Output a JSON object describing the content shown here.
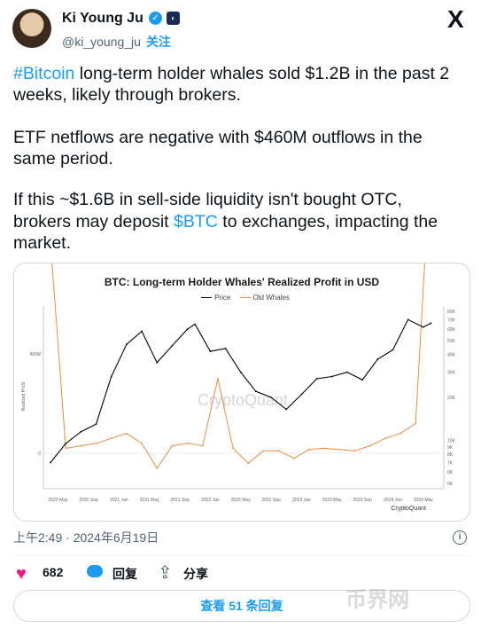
{
  "author": {
    "name": "Ki Young Ju",
    "handle": "@ki_young_ju",
    "follow": "关注",
    "verified_icon": "✓"
  },
  "tweet": {
    "line1_tag": "#Bitcoin",
    "line1_rest": " long-term holder whales sold $1.2B in the past 2",
    "line2": "weeks, likely through brokers.",
    "line3": "ETF netflows are negative with $460M outflows in the",
    "line4": "same period.",
    "line5": "If this ~$1.6B in sell-side liquidity isn't bought OTC,",
    "line6_pre": "brokers may deposit ",
    "line6_tag": "$BTC",
    "line6_post": " to exchanges, impacting the",
    "line7": "market."
  },
  "chart_data": {
    "type": "line",
    "title": "BTC: Long-term Holder Whales' Realized Profit in USD",
    "ylabel": "Realized Profit",
    "legend": [
      "Price",
      "Old Whales"
    ],
    "x_ticks": [
      "2020 May",
      "2020 Sep",
      "2021 Jan",
      "2021 May",
      "2021 Sep",
      "2022 Jan",
      "2022 May",
      "2022 Sep",
      "2023 Jan",
      "2023 May",
      "2023 Sep",
      "2024 Jan",
      "2024 May"
    ],
    "y_left_ticks": [
      "800M",
      "400M",
      "0"
    ],
    "y_right_ticks": [
      "80K",
      "70K",
      "60K",
      "50K",
      "40K",
      "30K",
      "20K",
      "10K",
      "9K",
      "8K",
      "7K",
      "6K",
      "5K"
    ],
    "series": [
      {
        "name": "Price",
        "color": "#000000",
        "x": [
          "2020 Apr",
          "2020 Jun",
          "2020 Aug",
          "2020 Oct",
          "2020 Dec",
          "2021 Feb",
          "2021 Apr",
          "2021 Jun",
          "2021 Aug",
          "2021 Oct",
          "2021 Nov",
          "2022 Jan",
          "2022 Mar",
          "2022 May",
          "2022 Jul",
          "2022 Sep",
          "2022 Nov",
          "2023 Jan",
          "2023 Mar",
          "2023 May",
          "2023 Jul",
          "2023 Sep",
          "2023 Nov",
          "2024 Jan",
          "2024 Mar",
          "2024 May",
          "2024 Jun"
        ],
        "values": [
          7000,
          9500,
          11500,
          13000,
          28000,
          47000,
          58000,
          35000,
          46000,
          60000,
          65000,
          42000,
          44000,
          30000,
          22000,
          20000,
          16500,
          21000,
          27000,
          28000,
          30000,
          26500,
          37000,
          43000,
          70000,
          62000,
          66000
        ]
      },
      {
        "name": "Old Whales",
        "color": "#e3904a",
        "x": [
          "2020 Apr",
          "2020 Jun",
          "2020 Aug",
          "2020 Oct",
          "2020 Dec",
          "2021 Feb",
          "2021 Apr",
          "2021 Jun",
          "2021 Aug",
          "2021 Oct",
          "2021 Dec",
          "2022 Feb",
          "2022 Apr",
          "2022 Jun",
          "2022 Aug",
          "2022 Oct",
          "2022 Dec",
          "2023 Feb",
          "2023 Apr",
          "2023 Jun",
          "2023 Aug",
          "2023 Oct",
          "2023 Dec",
          "2024 Feb",
          "2024 Apr",
          "2024 Jun"
        ],
        "values": [
          850,
          20,
          30,
          40,
          60,
          80,
          40,
          -60,
          30,
          40,
          30,
          300,
          20,
          -40,
          10,
          10,
          -20,
          15,
          20,
          15,
          10,
          30,
          60,
          80,
          120,
          1200
        ]
      }
    ],
    "watermark": "CryptoQuant",
    "brand": "CryptoQuant"
  },
  "meta": {
    "time": "上午2:49 · 2024年6月19日",
    "info_icon": "i"
  },
  "actions": {
    "likes": "682",
    "reply": "回复",
    "share": "分享",
    "heart_icon": "♥",
    "share_icon": "⇪"
  },
  "read_replies": "查看 51 条回复",
  "watermark": "币界网"
}
